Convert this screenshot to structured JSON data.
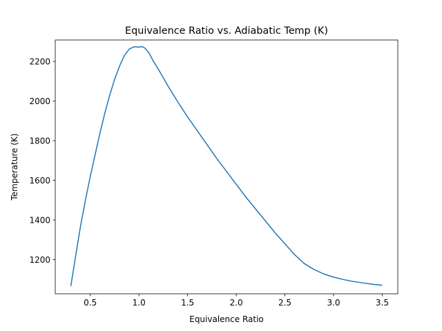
{
  "chart_data": {
    "type": "line",
    "title": "Equivalence Ratio vs. Adiabatic Temp (K)",
    "xlabel": "Equivalence Ratio",
    "ylabel": "Temperature (K)",
    "xlim": [
      0.14,
      3.66
    ],
    "ylim": [
      1028,
      2308
    ],
    "xticks": [
      0.5,
      1.0,
      1.5,
      2.0,
      2.5,
      3.0,
      3.5
    ],
    "xtick_labels": [
      "0.5",
      "1.0",
      "1.5",
      "2.0",
      "2.5",
      "3.0",
      "3.5"
    ],
    "yticks": [
      1200,
      1400,
      1600,
      1800,
      2000,
      2200
    ],
    "ytick_labels": [
      "1200",
      "1400",
      "1600",
      "1800",
      "2000",
      "2200"
    ],
    "grid": false,
    "series": [
      {
        "color": "#1f77b4",
        "x": [
          0.3,
          0.35,
          0.4,
          0.45,
          0.5,
          0.55,
          0.6,
          0.65,
          0.7,
          0.75,
          0.8,
          0.85,
          0.9,
          0.95,
          1.0,
          1.03,
          1.06,
          1.1,
          1.15,
          1.2,
          1.3,
          1.4,
          1.5,
          1.6,
          1.7,
          1.8,
          1.9,
          2.0,
          2.1,
          2.2,
          2.3,
          2.4,
          2.5,
          2.6,
          2.7,
          2.8,
          2.9,
          3.0,
          3.1,
          3.2,
          3.3,
          3.4,
          3.5
        ],
        "y": [
          1067,
          1220,
          1370,
          1500,
          1620,
          1730,
          1840,
          1940,
          2030,
          2110,
          2175,
          2230,
          2262,
          2274,
          2272,
          2275,
          2268,
          2245,
          2200,
          2160,
          2075,
          1995,
          1920,
          1850,
          1780,
          1710,
          1645,
          1580,
          1515,
          1455,
          1395,
          1335,
          1280,
          1225,
          1180,
          1150,
          1128,
          1112,
          1100,
          1090,
          1083,
          1076,
          1071
        ]
      }
    ]
  }
}
